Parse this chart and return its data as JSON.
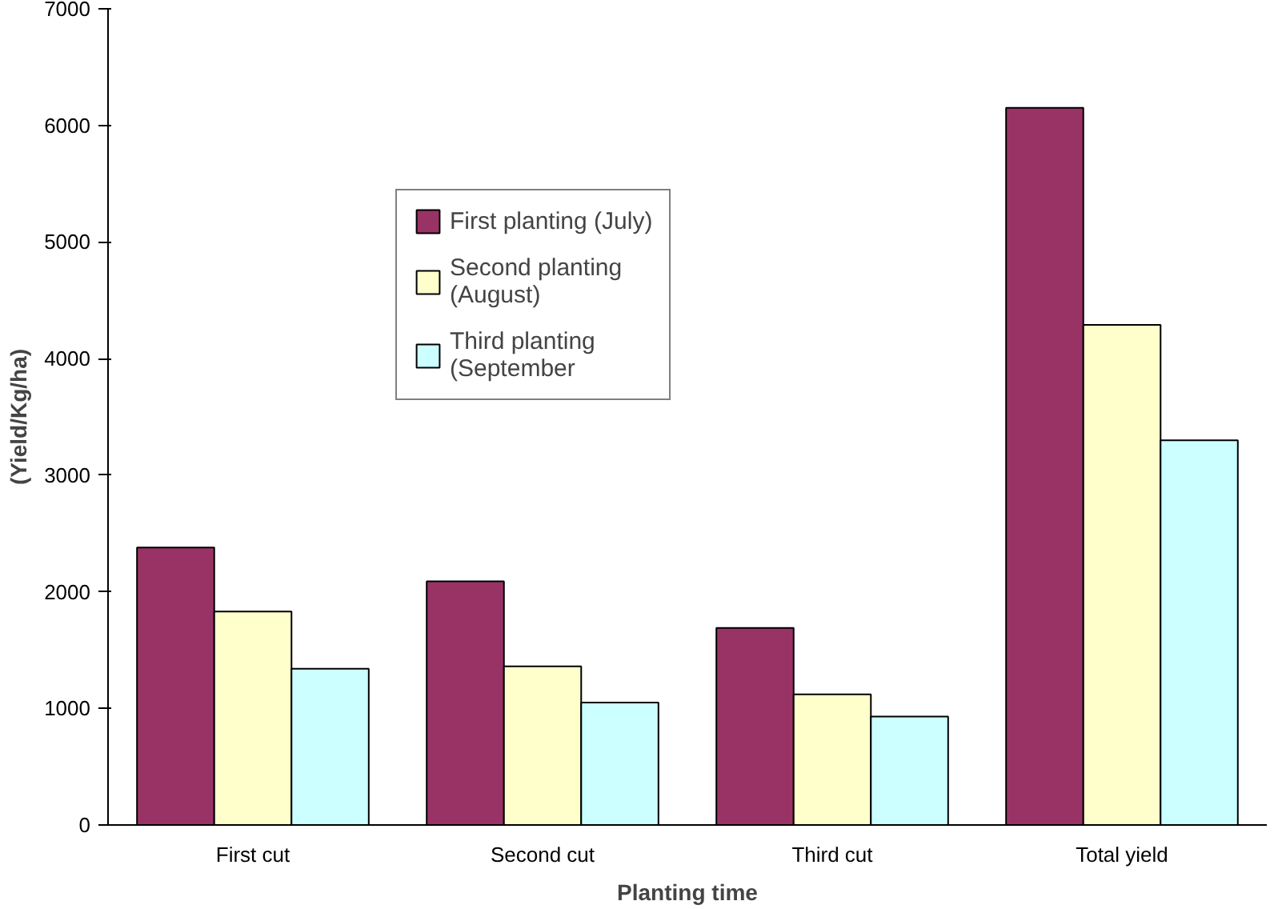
{
  "chart_data": {
    "type": "bar",
    "xlabel": "Planting time",
    "ylabel": "(Yield/Kg/ha)",
    "categories": [
      "First cut",
      "Second cut",
      "Third cut",
      "Total yield"
    ],
    "series": [
      {
        "name": "First planting (July)",
        "color": "#993366",
        "values": [
          2380,
          2090,
          1690,
          6150
        ]
      },
      {
        "name": "Second planting\n(August)",
        "color": "#ffffcc",
        "values": [
          1830,
          1360,
          1120,
          4290
        ]
      },
      {
        "name": "Third planting\n(September",
        "color": "#ccffff",
        "values": [
          1340,
          1050,
          930,
          3300
        ]
      }
    ],
    "ylim": [
      0,
      7000
    ],
    "yticks": [
      0,
      1000,
      2000,
      3000,
      4000,
      5000,
      6000,
      7000
    ],
    "grid": false,
    "legend": "top left"
  }
}
